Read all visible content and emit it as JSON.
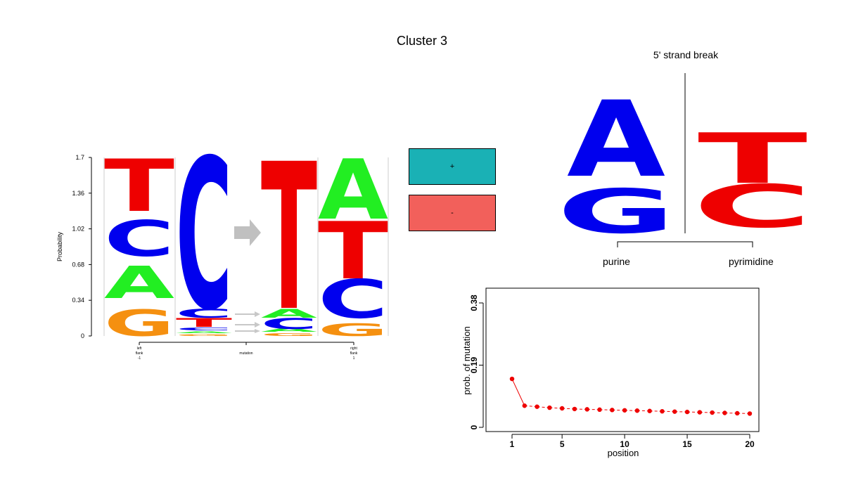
{
  "title": "Cluster 3",
  "logo": {
    "ylabel": "Probability",
    "yticks": [
      "0",
      "0.34",
      "0.68",
      "1.02",
      "1.36",
      "1.7"
    ],
    "ymax": 1.7,
    "xlabels": {
      "left": [
        "left",
        "flank",
        "-1"
      ],
      "mid": [
        "mutation"
      ],
      "right": [
        "right",
        "flank",
        "1"
      ]
    },
    "colors": {
      "A": "#22ee22",
      "C": "#0000ee",
      "G": "#f59010",
      "T": "#ee0000"
    }
  },
  "legend": {
    "plus": "+",
    "minus": "-",
    "plus_color": "#1ab1b5",
    "minus_color": "#f2605b"
  },
  "strand": {
    "title": "5' strand break",
    "purine_label": "purine",
    "pyrimidine_label": "pyrimidine",
    "purine_letters": [
      "A",
      "G"
    ],
    "pyrimidine_letters": [
      "T",
      "C"
    ]
  },
  "chart_data": {
    "type": "line",
    "xlabel": "position",
    "ylabel": "prob. of mutation",
    "xticks": [
      1,
      5,
      10,
      15,
      20
    ],
    "yticks": [
      "0",
      "0.19",
      "0.38"
    ],
    "xlim": [
      0,
      21
    ],
    "ylim": [
      0,
      0.38
    ],
    "color": "#ee0000",
    "x": [
      1,
      2,
      3,
      4,
      5,
      6,
      7,
      8,
      9,
      10,
      11,
      12,
      13,
      14,
      15,
      16,
      17,
      18,
      19,
      20
    ],
    "y": [
      0.148,
      0.066,
      0.063,
      0.06,
      0.058,
      0.056,
      0.055,
      0.054,
      0.053,
      0.052,
      0.051,
      0.05,
      0.049,
      0.048,
      0.047,
      0.046,
      0.045,
      0.044,
      0.043,
      0.042
    ]
  }
}
